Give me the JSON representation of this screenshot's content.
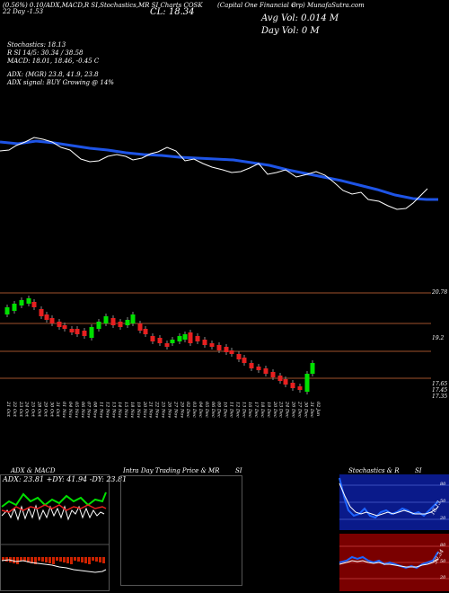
{
  "header": {
    "line1": "(0.56%)    0.10/ADX,MACD,R       SI,Stochastics,MR       SI Charts  COSK",
    "line1b": "(Capital One Financial C",
    "line1c": "orp) MunafaSutra.com",
    "line2": "22  Day      -1.53",
    "cl": "CL: 18.34",
    "avg_vol": "Avg Vol: 0.014   M",
    "day_vol": "Day Vol: 0   M"
  },
  "indicators": {
    "stoch_label": "Stochastics: 18.13",
    "stoch_r": "R          SI 14/5: 30.34 / 38.58",
    "macd": "MACD: 18.01, 18.46, -0.45  C",
    "adx": "ADX:                   (MGR) 23.8, 41.9, 23.8",
    "adx_signal": "ADX  signal:                                  BUY Growing @ 14%"
  },
  "price_levels": [
    {
      "label": "20.78",
      "value": 20.78
    },
    {
      "label": "19.2",
      "value": 19.2
    },
    {
      "label": "17.65",
      "value": 17.65
    },
    {
      "label": "17.45",
      "value": 17.45
    },
    {
      "label": "17.35",
      "value": 17.35
    }
  ],
  "dates": [
    "21 Oct",
    "22 Oct",
    "23 Oct",
    "24 Oct",
    "25 Oct",
    "28 Oct",
    "29 Oct",
    "30 Oct",
    "31 Oct",
    "01 Nov",
    "04 Nov",
    "05 Nov",
    "06 Nov",
    "07 Nov",
    "08 Nov",
    "11 Nov",
    "12 Nov",
    "13 Nov",
    "14 Nov",
    "15 Nov",
    "18 Nov",
    "19 Nov",
    "20 Nov",
    "21 Nov",
    "22 Nov",
    "25 Nov",
    "26 Nov",
    "27 Nov",
    "29 Nov",
    "02 Dec",
    "03 Dec",
    "04 Dec",
    "05 Dec",
    "06 Dec",
    "09 Dec",
    "10 Dec",
    "11 Dec",
    "12 Dec",
    "13 Dec",
    "16 Dec",
    "17 Dec",
    "18 Dec",
    "19 Dec",
    "20 Dec",
    "23 Dec",
    "24 Dec",
    "26 Dec",
    "27 Dec",
    "30 Dec",
    "31 Dec",
    "02 Jan"
  ],
  "panels": {
    "adx_title": "ADX  & MACD",
    "adx_values": "ADX: 23.81  +DY: 41.94  -DY: 23.81",
    "intra_title": "Intra  Day Trading Price  & MR",
    "intra_si": "SI",
    "stoch_title": "Stochastics & R",
    "stoch_si": "SI",
    "stoch_ticks": [
      "80",
      "50",
      "20"
    ],
    "rsi_ticks": [
      "80",
      "50",
      "20"
    ],
    "stoch_end": "18.13",
    "rsi_end": "30.34"
  },
  "colors": {
    "ema": "#1e54e6",
    "bull": "#00e000",
    "bear": "#e62020",
    "price_line": "#ffffff",
    "level": "#a0522d",
    "macd_red": "#cc2200"
  }
}
